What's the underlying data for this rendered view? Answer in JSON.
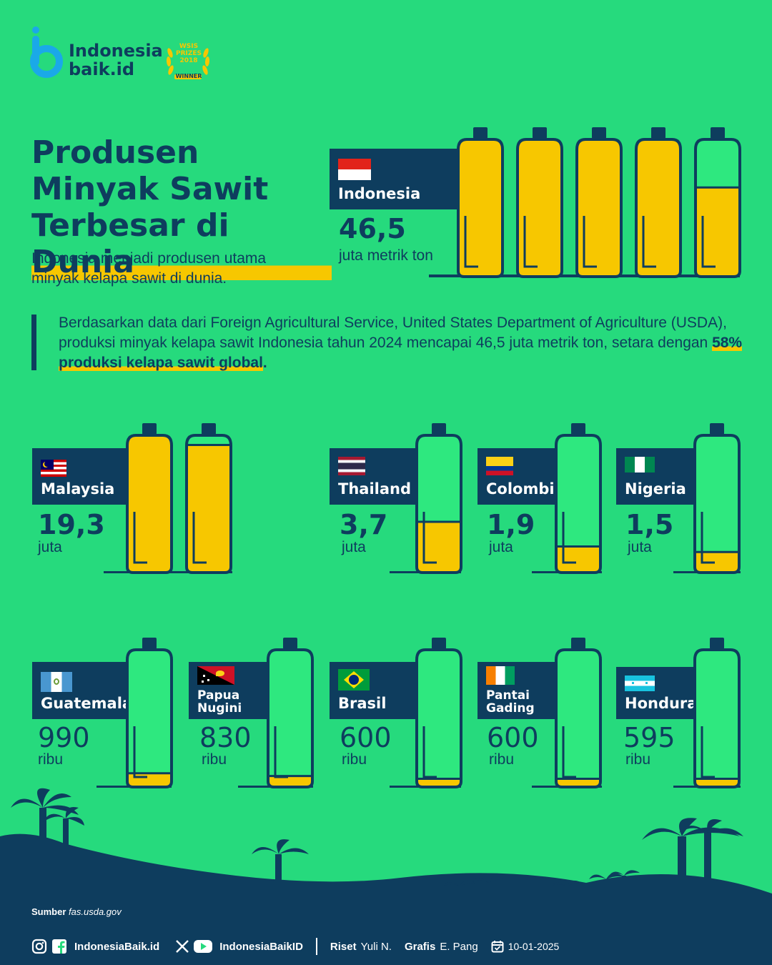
{
  "brand": {
    "name_line1": "Indonesia",
    "name_line2": "baik.id",
    "award_line1": "WSIS",
    "award_line2": "PRIZES",
    "award_line3": "2018",
    "award_line4": "WINNER"
  },
  "hero": {
    "title_line1": "Produsen",
    "title_line2": "Minyak Sawit",
    "title_line3": "Terbesar di Dunia",
    "subtitle": "Indonesia menjadi produsen utama minyak kelapa sawit di dunia."
  },
  "description": {
    "text": "Berdasarkan data dari Foreign Agricultural Service, United States Department of Agriculture (USDA), produksi minyak kelapa sawit Indonesia tahun 2024 mencapai 46,5 juta metrik ton, setara dengan ",
    "highlight": "58% produksi kelapa sawit global",
    "end": "."
  },
  "countries": [
    {
      "name": "Indonesia",
      "value": "46,5",
      "unit": "juta metrik ton",
      "amount_million_tons": 46.5,
      "bottle_fills": [
        1,
        1,
        1,
        1,
        0.65
      ]
    },
    {
      "name": "Malaysia",
      "value": "19,3",
      "unit": "juta",
      "amount_million_tons": 19.3,
      "bottle_fills": [
        1,
        0.93
      ]
    },
    {
      "name": "Thailand",
      "value": "3,7",
      "unit": "juta",
      "amount_million_tons": 3.7,
      "bottle_fills": [
        0.37
      ]
    },
    {
      "name": "Colombia",
      "value": "1,9",
      "unit": "juta",
      "amount_million_tons": 1.9,
      "bottle_fills": [
        0.19
      ]
    },
    {
      "name": "Nigeria",
      "value": "1,5",
      "unit": "juta",
      "amount_million_tons": 1.5,
      "bottle_fills": [
        0.15
      ]
    },
    {
      "name": "Guatemala",
      "value": "990",
      "unit": "ribu",
      "amount_million_tons": 0.99,
      "bottle_fills": [
        0.1
      ]
    },
    {
      "name": "Papua Nugini",
      "name_line1": "Papua",
      "name_line2": "Nugini",
      "value": "830",
      "unit": "ribu",
      "amount_million_tons": 0.83,
      "bottle_fills": [
        0.08
      ]
    },
    {
      "name": "Brasil",
      "value": "600",
      "unit": "ribu",
      "amount_million_tons": 0.6,
      "bottle_fills": [
        0.06
      ]
    },
    {
      "name": "Pantai Gading",
      "name_line1": "Pantai",
      "name_line2": "Gading",
      "value": "600",
      "unit": "ribu",
      "amount_million_tons": 0.6,
      "bottle_fills": [
        0.06
      ]
    },
    {
      "name": "Honduras",
      "value": "595",
      "unit": "ribu",
      "amount_million_tons": 0.595,
      "bottle_fills": [
        0.06
      ]
    }
  ],
  "footer": {
    "source_label": "Sumber",
    "source_value": "fas.usda.gov",
    "social1": "IndonesiaBaik.id",
    "social2": "IndonesiaBaikID",
    "riset_label": "Riset",
    "riset_name": "Yuli N.",
    "grafis_label": "Grafis",
    "grafis_name": "E. Pang",
    "date": "10-01-2025"
  },
  "colors": {
    "background": "#26da7d",
    "navy": "#0e3d5e",
    "oil_yellow": "#f7c700",
    "bottle_empty": "#2ee87f"
  },
  "icons": [
    "instagram-icon",
    "facebook-icon",
    "x-icon",
    "youtube-icon",
    "calendar-icon",
    "palm-tree-icon"
  ]
}
